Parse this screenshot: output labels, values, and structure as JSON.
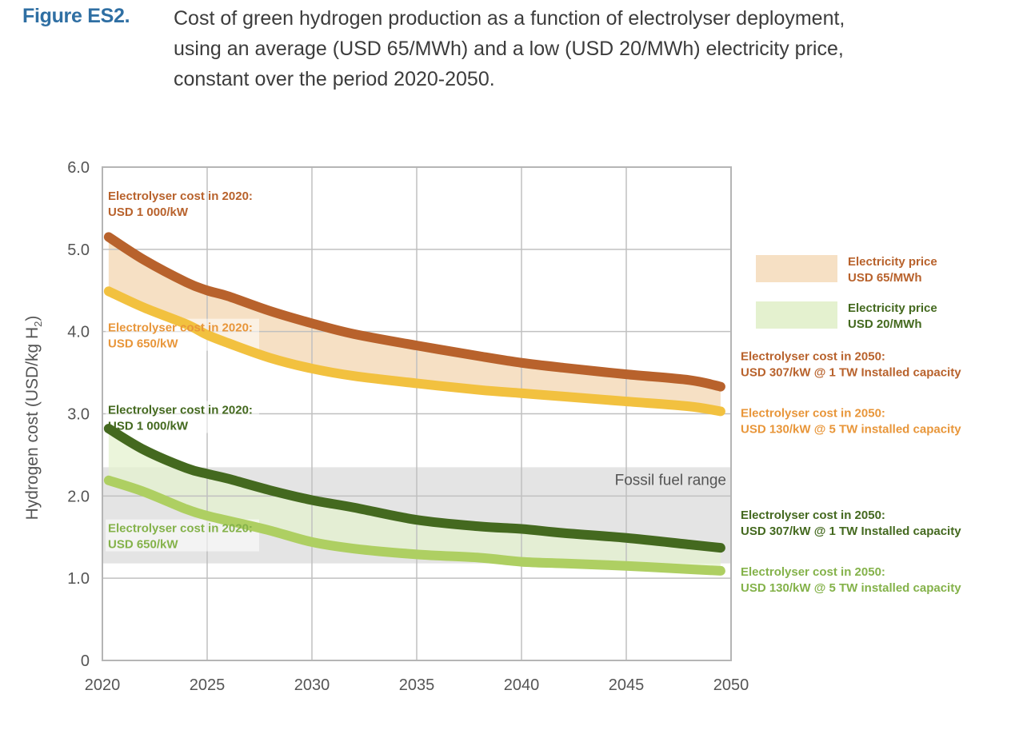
{
  "figure": {
    "label": "Figure ES2.",
    "caption_lines": [
      "Cost of green hydrogen production as a function of electrolyser deployment,",
      "using an average (USD 65/MWh) and a low (USD 20/MWh) electricity price,",
      "constant over the period 2020-2050."
    ]
  },
  "colors": {
    "caption_label": "#2f6fa3",
    "usd65_1000": "#b8622c",
    "usd65_650": "#f2c13f",
    "usd65_band": "#f6e0c4",
    "usd20_1000": "#44691f",
    "usd20_650": "#aecf62",
    "usd20_band": "#e4f1cf",
    "fossil_band": "#e4e4e4",
    "annot_orange_light": "#e8963a",
    "annot_green_light": "#84b24a",
    "grid": "#c0c0c0"
  },
  "chart_data": {
    "type": "line",
    "title": "Cost of green hydrogen production as a function of electrolyser deployment",
    "xlabel": "",
    "ylabel": "Hydrogen cost (USD/kg H2)",
    "ylabel_main": "Hydrogen cost (USD/kg H",
    "ylabel_sub": "2",
    "ylabel_tail": ")",
    "xlim": [
      2020,
      2050
    ],
    "ylim": [
      0,
      6
    ],
    "grid": true,
    "x_ticks": [
      "2020",
      "2025",
      "2030",
      "2035",
      "2040",
      "2045",
      "2050"
    ],
    "x_tick_values": [
      2020,
      2025,
      2030,
      2035,
      2040,
      2045,
      2050
    ],
    "y_ticks": [
      "0",
      "1.0",
      "2.0",
      "3.0",
      "4.0",
      "5.0",
      "6.0"
    ],
    "y_tick_values": [
      0,
      1,
      2,
      3,
      4,
      5,
      6
    ],
    "x": [
      2020.3,
      2022,
      2024,
      2025,
      2026,
      2028,
      2030,
      2032,
      2035,
      2038,
      2040,
      2042,
      2045,
      2048,
      2049.5
    ],
    "series": [
      {
        "name": "USD 65/MWh - Electrolyser USD 1 000/kW (2020) to USD 307/kW @ 1 TW",
        "color_key": "usd65_1000",
        "values": [
          5.15,
          4.87,
          4.6,
          4.5,
          4.43,
          4.25,
          4.1,
          3.97,
          3.83,
          3.7,
          3.62,
          3.56,
          3.48,
          3.41,
          3.33
        ]
      },
      {
        "name": "USD 65/MWh - Electrolyser USD 650/kW (2020) to USD 130/kW @ 5 TW",
        "color_key": "usd65_650",
        "values": [
          4.49,
          4.29,
          4.09,
          3.96,
          3.86,
          3.68,
          3.55,
          3.46,
          3.37,
          3.29,
          3.25,
          3.21,
          3.15,
          3.09,
          3.03
        ]
      },
      {
        "name": "USD 20/MWh - Electrolyser USD 1 000/kW (2020) to USD 307/kW @ 1 TW",
        "color_key": "usd20_1000",
        "values": [
          2.82,
          2.56,
          2.34,
          2.27,
          2.21,
          2.07,
          1.95,
          1.86,
          1.71,
          1.63,
          1.6,
          1.55,
          1.49,
          1.41,
          1.37
        ]
      },
      {
        "name": "USD 20/MWh - Electrolyser USD 650/kW (2020) to USD 130/kW @ 5 TW",
        "color_key": "usd20_650",
        "values": [
          2.19,
          2.05,
          1.84,
          1.76,
          1.7,
          1.58,
          1.44,
          1.36,
          1.29,
          1.25,
          1.2,
          1.18,
          1.15,
          1.11,
          1.09
        ]
      }
    ],
    "bands": [
      {
        "name": "Electricity price USD 65/MWh",
        "upper_series": 0,
        "lower_series": 1,
        "color_key": "usd65_band"
      },
      {
        "name": "Electricity price USD 20/MWh",
        "upper_series": 2,
        "lower_series": 3,
        "color_key": "usd20_band"
      }
    ],
    "fossil_range": {
      "label": "Fossil fuel range",
      "low": 1.18,
      "high": 2.35
    },
    "legend": {
      "placement": "right",
      "entries": [
        {
          "line1": "Electricity price",
          "line2": "USD 65/MWh",
          "color_key": "usd65_band",
          "text_color_key": "usd65_1000"
        },
        {
          "line1": "Electricity price",
          "line2": "USD 20/MWh",
          "color_key": "usd20_band",
          "text_color_key": "usd20_1000"
        }
      ]
    },
    "annotations": [
      {
        "id": "start-65-1000",
        "line1": "Electrolyser cost in 2020:",
        "line2": "USD 1 000/kW",
        "color_key": "usd65_1000",
        "anchor_year": 2020.3,
        "anchor_value": 5.6,
        "side": "start",
        "boxed": false
      },
      {
        "id": "start-65-650",
        "line1": "Electrolyser cost in 2020:",
        "line2": "USD 650/kW",
        "color_key": "annot_orange_light",
        "anchor_year": 2020.3,
        "anchor_value": 4.0,
        "side": "start",
        "boxed": true
      },
      {
        "id": "start-20-1000",
        "line1": "Electrolyser cost in 2020:",
        "line2": "USD 1 000/kW",
        "color_key": "usd20_1000",
        "anchor_year": 2020.3,
        "anchor_value": 3.0,
        "side": "start",
        "boxed": true
      },
      {
        "id": "start-20-650",
        "line1": "Electrolyser cost in 2020:",
        "line2": "USD 650/kW",
        "color_key": "annot_green_light",
        "anchor_year": 2020.3,
        "anchor_value": 1.56,
        "side": "start",
        "boxed": true
      },
      {
        "id": "end-65-1000",
        "line1": "Electrolyser cost in 2050:",
        "line2": "USD 307/kW @ 1 TW Installed capacity",
        "color_key": "usd65_1000",
        "anchor_value": 3.65,
        "side": "end",
        "boxed": false
      },
      {
        "id": "end-65-650",
        "line1": "Electrolyser cost in 2050:",
        "line2": "USD 130/kW @ 5 TW installed capacity",
        "color_key": "annot_orange_light",
        "anchor_value": 2.96,
        "side": "end",
        "boxed": false
      },
      {
        "id": "end-20-1000",
        "line1": "Electrolyser cost in 2050:",
        "line2": "USD 307/kW @ 1 TW Installed capacity",
        "color_key": "usd20_1000",
        "anchor_value": 1.72,
        "side": "end",
        "boxed": false
      },
      {
        "id": "end-20-650",
        "line1": "Electrolyser cost in 2050:",
        "line2": "USD 130/kW @ 5 TW installed capacity",
        "color_key": "annot_green_light",
        "anchor_value": 1.03,
        "side": "end",
        "boxed": false
      }
    ]
  }
}
